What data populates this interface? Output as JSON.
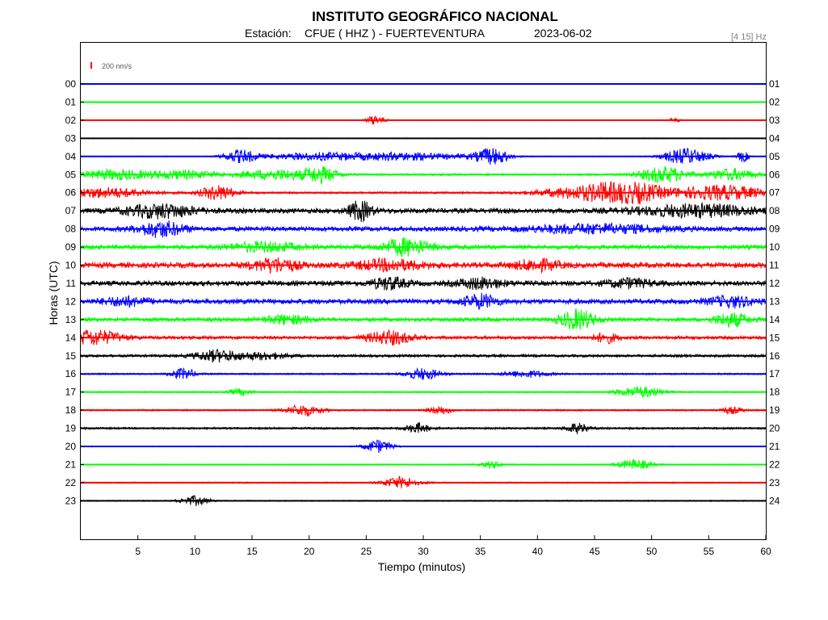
{
  "header": {
    "title": "INSTITUTO GEOGRÁFICO NACIONAL",
    "station_label": "Estación:",
    "station": "CFUE ( HHZ ) - FUERTEVENTURA",
    "date": "2023-06-02",
    "band": "[4 15] Hz"
  },
  "scale": {
    "label": "200 nm/s",
    "color": "#ff0000"
  },
  "chart_data": {
    "type": "line",
    "xlabel": "Tiempo (minutos)",
    "ylabel": "Horas (UTC)",
    "xlim": [
      0,
      60
    ],
    "x_ticks": [
      5,
      10,
      15,
      20,
      25,
      30,
      35,
      40,
      45,
      50,
      55,
      60
    ],
    "left_labels": [
      "00",
      "01",
      "02",
      "03",
      "04",
      "05",
      "06",
      "07",
      "08",
      "09",
      "10",
      "11",
      "12",
      "13",
      "14",
      "15",
      "16",
      "17",
      "18",
      "19",
      "20",
      "21",
      "22",
      "23"
    ],
    "right_labels": [
      "01",
      "02",
      "03",
      "04",
      "05",
      "06",
      "07",
      "08",
      "09",
      "10",
      "11",
      "12",
      "13",
      "14",
      "15",
      "16",
      "17",
      "18",
      "19",
      "20",
      "21",
      "22",
      "23",
      "24"
    ],
    "trace_colors": [
      "#0000ff",
      "#00ff00",
      "#ff0000",
      "#000000"
    ],
    "grid": false,
    "traces": [
      {
        "hour": "00",
        "color": "#0000ff",
        "noise": 0.25,
        "bursts": []
      },
      {
        "hour": "01",
        "color": "#00ff00",
        "noise": 0.15,
        "bursts": []
      },
      {
        "hour": "02",
        "color": "#ff0000",
        "noise": 0.25,
        "bursts": [
          [
            25.8,
            0.8,
            6
          ],
          [
            52,
            0.5,
            3
          ]
        ]
      },
      {
        "hour": "03",
        "color": "#000000",
        "noise": 0.45,
        "bursts": []
      },
      {
        "hour": "04",
        "color": "#0000ff",
        "noise": 0.4,
        "bursts": [
          [
            14,
            1.5,
            8
          ],
          [
            20,
            4,
            4
          ],
          [
            28,
            6,
            5
          ],
          [
            36,
            1.5,
            10
          ],
          [
            53,
            2,
            10
          ],
          [
            58,
            0.5,
            7
          ]
        ]
      },
      {
        "hour": "05",
        "color": "#00ff00",
        "noise": 1.2,
        "bursts": [
          [
            3,
            3,
            6
          ],
          [
            9,
            3,
            5
          ],
          [
            17,
            3,
            6
          ],
          [
            21,
            1.5,
            9
          ],
          [
            51,
            2,
            10
          ],
          [
            57,
            2,
            7
          ]
        ]
      },
      {
        "hour": "06",
        "color": "#ff0000",
        "noise": 1.2,
        "bursts": [
          [
            2,
            4,
            6
          ],
          [
            12,
            1.5,
            9
          ],
          [
            44,
            4,
            7
          ],
          [
            48,
            3,
            12
          ],
          [
            56,
            4,
            9
          ]
        ]
      },
      {
        "hour": "07",
        "color": "#000000",
        "noise": 3.0,
        "bursts": [
          [
            7,
            3,
            8
          ],
          [
            24.5,
            1,
            12
          ],
          [
            54,
            5,
            7
          ]
        ]
      },
      {
        "hour": "08",
        "color": "#0000ff",
        "noise": 2.8,
        "bursts": [
          [
            7,
            2,
            9
          ],
          [
            45,
            6,
            5
          ]
        ]
      },
      {
        "hour": "09",
        "color": "#00ff00",
        "noise": 2.8,
        "bursts": [
          [
            28.5,
            2,
            10
          ],
          [
            16,
            3,
            5
          ]
        ]
      },
      {
        "hour": "10",
        "color": "#ff0000",
        "noise": 3.2,
        "bursts": [
          [
            17,
            2,
            8
          ],
          [
            27,
            3,
            6
          ],
          [
            40,
            2,
            6
          ]
        ]
      },
      {
        "hour": "11",
        "color": "#000000",
        "noise": 3.0,
        "bursts": [
          [
            27,
            1.5,
            7
          ],
          [
            35,
            2,
            6
          ],
          [
            48,
            2,
            5
          ]
        ]
      },
      {
        "hour": "12",
        "color": "#0000ff",
        "noise": 3.0,
        "bursts": [
          [
            4,
            2,
            5
          ],
          [
            35,
            1.5,
            8
          ],
          [
            57,
            2,
            6
          ]
        ]
      },
      {
        "hour": "13",
        "color": "#00ff00",
        "noise": 2.4,
        "bursts": [
          [
            43.5,
            1.5,
            12
          ],
          [
            57,
            1.5,
            8
          ],
          [
            18,
            2,
            5
          ]
        ]
      },
      {
        "hour": "14",
        "color": "#ff0000",
        "noise": 2.0,
        "bursts": [
          [
            1,
            2.5,
            9
          ],
          [
            27,
            2,
            8
          ],
          [
            46,
            1,
            6
          ]
        ]
      },
      {
        "hour": "15",
        "color": "#000000",
        "noise": 1.6,
        "bursts": [
          [
            12,
            2,
            7
          ],
          [
            16,
            2,
            4
          ]
        ]
      },
      {
        "hour": "16",
        "color": "#0000ff",
        "noise": 1.0,
        "bursts": [
          [
            9,
            1,
            7
          ],
          [
            30,
            1.5,
            7
          ],
          [
            39,
            2,
            4
          ]
        ]
      },
      {
        "hour": "17",
        "color": "#00ff00",
        "noise": 0.8,
        "bursts": [
          [
            49,
            2,
            7
          ],
          [
            14,
            1,
            4
          ]
        ]
      },
      {
        "hour": "18",
        "color": "#ff0000",
        "noise": 1.0,
        "bursts": [
          [
            19.5,
            1.5,
            7
          ],
          [
            31.5,
            1,
            5
          ],
          [
            57,
            1,
            4
          ]
        ]
      },
      {
        "hour": "19",
        "color": "#000000",
        "noise": 1.2,
        "bursts": [
          [
            29.5,
            1,
            6
          ],
          [
            43.5,
            1,
            6
          ]
        ]
      },
      {
        "hour": "20",
        "color": "#0000ff",
        "noise": 0.6,
        "bursts": [
          [
            26,
            1.2,
            8
          ]
        ]
      },
      {
        "hour": "21",
        "color": "#00ff00",
        "noise": 0.7,
        "bursts": [
          [
            48.5,
            1.5,
            6
          ],
          [
            36,
            1,
            4
          ]
        ]
      },
      {
        "hour": "22",
        "color": "#ff0000",
        "noise": 0.8,
        "bursts": [
          [
            28,
            1.5,
            7
          ]
        ]
      },
      {
        "hour": "23",
        "color": "#000000",
        "noise": 0.7,
        "bursts": [
          [
            10,
            1.2,
            6
          ]
        ]
      }
    ]
  }
}
